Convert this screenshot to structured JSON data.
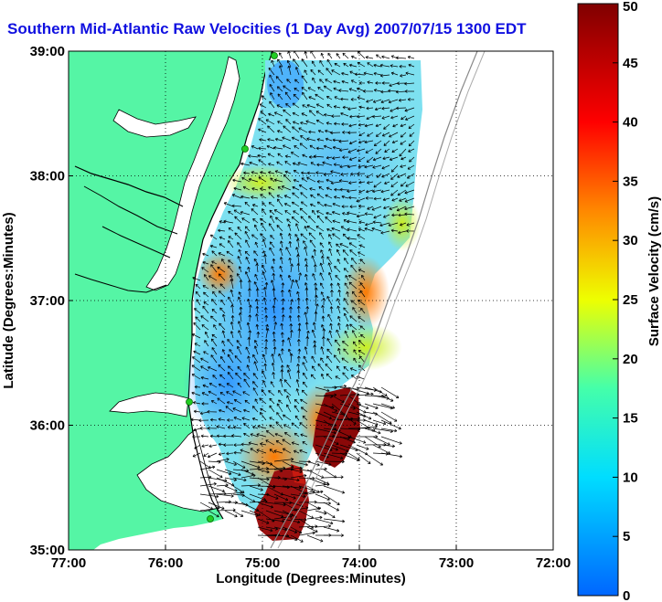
{
  "title": "Southern Mid-Atlantic Raw Velocities (1 Day Avg) 2007/07/15 1300 EDT",
  "chart_data": {
    "type": "heatmap",
    "xlabel": "Longitude (Degrees:Minutes)",
    "ylabel": "Latitude (Degrees:Minutes)",
    "x_ticks": [
      "77:00",
      "76:00",
      "75:00",
      "74:00",
      "73:00",
      "72:00"
    ],
    "y_ticks": [
      "39:00",
      "38:00",
      "37:00",
      "36:00",
      "35:00"
    ],
    "xlim": [
      -77,
      -72
    ],
    "ylim": [
      35,
      39
    ],
    "grid": true,
    "colorbar": {
      "label": "Surface Velocity (cm/s)",
      "ticks": [
        "0",
        "5",
        "10",
        "15",
        "20",
        "25",
        "30",
        "35",
        "40",
        "45",
        "50"
      ],
      "range": [
        0,
        50
      ],
      "colors": [
        "#0066ff",
        "#00ddff",
        "#44ffaa",
        "#eeff00",
        "#ff8800",
        "#ff0000",
        "#800000"
      ]
    },
    "land_color": "#55f5a5",
    "coastline_color": "#000000",
    "station_color": "#22cc22",
    "vector_color": "#000000"
  }
}
